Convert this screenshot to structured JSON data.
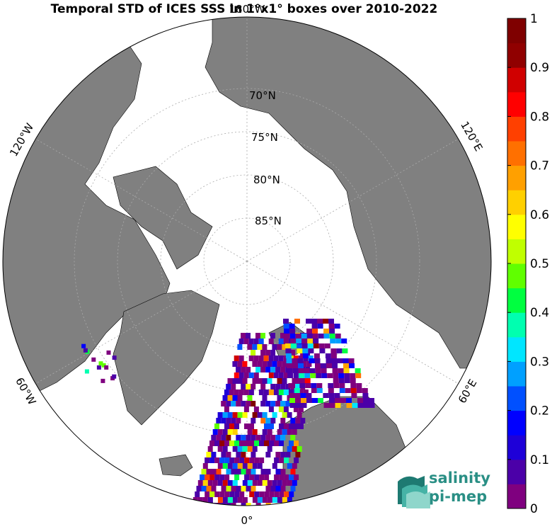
{
  "title": "Temporal STD of ICES SSS in 1°x1° boxes over 2010-2022",
  "lon_labels": {
    "top": "180°W",
    "left_upper": "120°W",
    "right_upper": "120°E",
    "left_lower": "60°W",
    "right_lower": "60°E",
    "bottom": "0°"
  },
  "lat_labels": [
    "70°N",
    "75°N",
    "80°N",
    "85°N"
  ],
  "colorbar": {
    "min": 0,
    "max": 1,
    "ticks": [
      "0",
      "0.1",
      "0.2",
      "0.3",
      "0.4",
      "0.5",
      "0.6",
      "0.7",
      "0.8",
      "0.9",
      "1"
    ],
    "colors": [
      "#7f007f",
      "#4b00a8",
      "#1e00d8",
      "#0000ff",
      "#0050ff",
      "#00a0ff",
      "#00e6ff",
      "#00ffb0",
      "#00ff40",
      "#60ff00",
      "#c0ff00",
      "#ffff00",
      "#ffd000",
      "#ffa000",
      "#ff7000",
      "#ff4000",
      "#ff0000",
      "#d00000",
      "#900000",
      "#7f0000"
    ]
  },
  "logo": {
    "line1": "salinity",
    "line2": "pi-mep"
  },
  "colors": {
    "land": "#808080",
    "ocean": "#ffffff",
    "logo": "#2a8f85"
  }
}
